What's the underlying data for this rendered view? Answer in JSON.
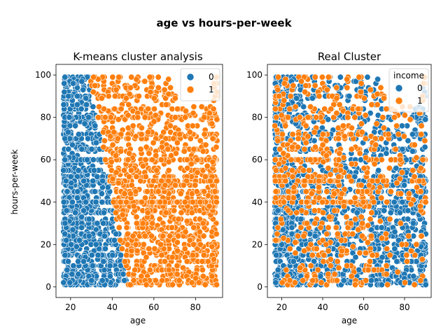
{
  "suptitle": "age vs hours-per-week",
  "colors": {
    "class_0": "#1f77b4",
    "class_1": "#ff7f0e"
  },
  "chart_data": [
    {
      "type": "scatter",
      "title": "K-means cluster analysis",
      "xlabel": "age",
      "ylabel": "hours-per-week",
      "xlim": [
        13,
        93
      ],
      "ylim": [
        -5,
        105
      ],
      "xticks": [
        20,
        40,
        60,
        80
      ],
      "yticks": [
        0,
        20,
        40,
        60,
        80,
        100
      ],
      "grid": false,
      "legend": {
        "placement": "top-right",
        "title": "",
        "entries": [
          "0",
          "1"
        ]
      },
      "series": [
        {
          "name": "0",
          "color": "#1f77b4",
          "x_range": [
            17,
            48
          ],
          "y_range": [
            1,
            99
          ],
          "description_boundary": "age below roughly 48 - 0.19*hours"
        },
        {
          "name": "1",
          "color": "#ff7f0e",
          "x_range": [
            30,
            90
          ],
          "y_range": [
            1,
            99
          ],
          "description_boundary": "age above roughly 48 - 0.19*hours"
        }
      ]
    },
    {
      "type": "scatter",
      "title": "Real Cluster",
      "xlabel": "age",
      "ylabel": "",
      "xlim": [
        13,
        93
      ],
      "ylim": [
        -5,
        105
      ],
      "xticks": [
        20,
        40,
        60,
        80
      ],
      "yticks": [
        0,
        20,
        40,
        60,
        80,
        100
      ],
      "grid": false,
      "legend": {
        "placement": "top-right",
        "title": "income",
        "entries": [
          "0",
          "1"
        ]
      },
      "series": [
        {
          "name": "0",
          "color": "#1f77b4",
          "x_range": [
            17,
            90
          ],
          "y_range": [
            1,
            99
          ]
        },
        {
          "name": "1",
          "color": "#ff7f0e",
          "x_range": [
            19,
            90
          ],
          "y_range": [
            1,
            99
          ]
        }
      ]
    }
  ]
}
